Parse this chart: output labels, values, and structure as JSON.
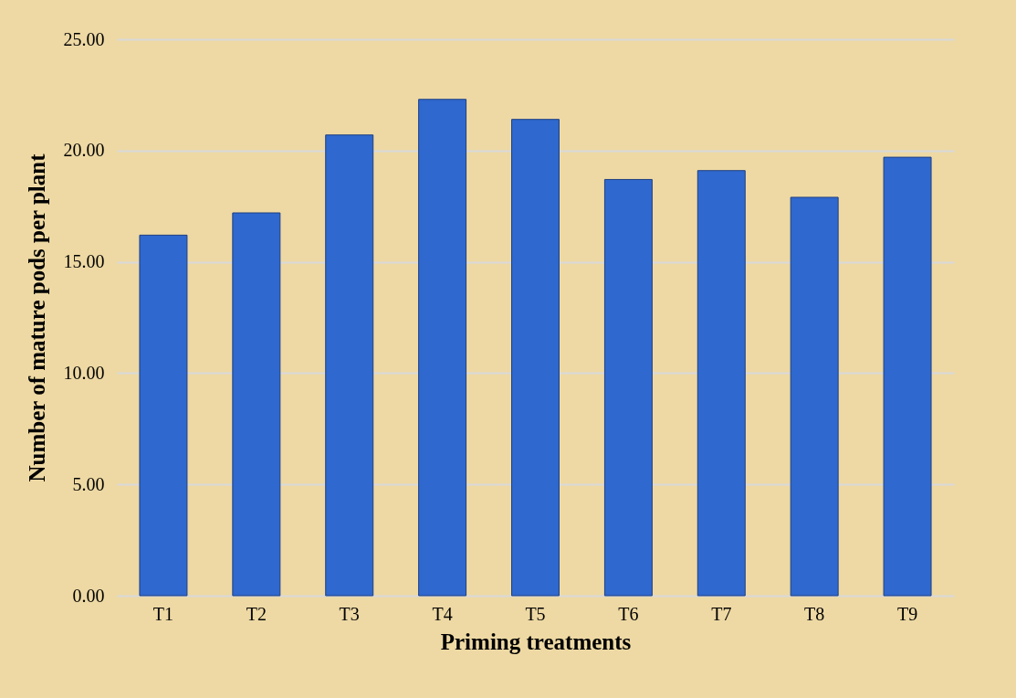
{
  "chart_data": {
    "type": "bar",
    "xlabel": "Priming treatments",
    "ylabel": "Number of mature pods per plant",
    "categories": [
      "T1",
      "T2",
      "T3",
      "T4",
      "T5",
      "T6",
      "T7",
      "T8",
      "T9"
    ],
    "values": [
      16.2,
      17.2,
      20.7,
      22.3,
      21.4,
      18.7,
      19.1,
      17.9,
      19.7
    ],
    "color": "#2f68cf",
    "ylim": [
      0,
      25
    ],
    "yticks": [
      {
        "value": 0,
        "label": "0.00"
      },
      {
        "value": 5,
        "label": "5.00"
      },
      {
        "value": 10,
        "label": "10.00"
      },
      {
        "value": 15,
        "label": "15.00"
      },
      {
        "value": 20,
        "label": "20.00"
      },
      {
        "value": 25,
        "label": "25.00"
      }
    ],
    "grid": "y"
  }
}
